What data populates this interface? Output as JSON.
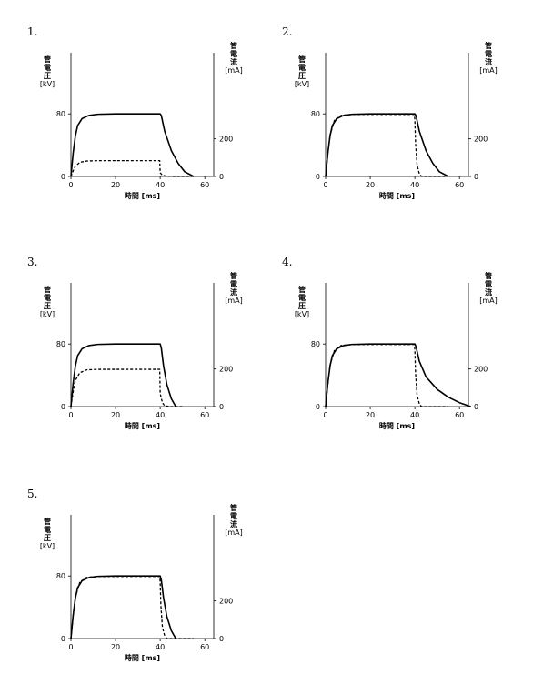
{
  "axes": {
    "left_label_lines": [
      "管",
      "電",
      "圧"
    ],
    "left_unit": "[kV]",
    "right_label_lines": [
      "管",
      "電",
      "流"
    ],
    "right_unit": "[mA]",
    "xlabel": "時間 [ms]",
    "x_ticks": [
      "0",
      "20",
      "40",
      "60"
    ],
    "y_left_ticks": [
      "0",
      "80"
    ],
    "y_right_ticks": [
      "0",
      "200"
    ]
  },
  "chart_data": [
    {
      "label": "1.",
      "type": "line",
      "xlim": [
        0,
        64
      ],
      "ylim_left_kV": [
        0,
        100
      ],
      "ylim_right_mA": [
        0,
        416
      ],
      "series": [
        {
          "axis": "left",
          "style": "solid",
          "x": [
            0,
            1,
            2,
            3,
            5,
            8,
            12,
            20,
            30,
            40,
            40.5,
            42,
            45,
            48,
            51,
            55
          ],
          "y": [
            0,
            30,
            52,
            65,
            74,
            78,
            79.5,
            80,
            80,
            80,
            78,
            58,
            33,
            17,
            6,
            0
          ]
        },
        {
          "axis": "right",
          "style": "dashed",
          "x": [
            0,
            1,
            2,
            4,
            7,
            12,
            25,
            38,
            39.8,
            40,
            41,
            43,
            46,
            50,
            55
          ],
          "y": [
            0,
            30,
            55,
            75,
            82,
            84,
            84,
            84,
            84,
            20,
            6,
            2,
            0,
            0,
            0
          ]
        }
      ]
    },
    {
      "label": "2.",
      "type": "line",
      "xlim": [
        0,
        64
      ],
      "ylim_left_kV": [
        0,
        100
      ],
      "ylim_right_mA": [
        0,
        416
      ],
      "series": [
        {
          "axis": "left",
          "style": "solid",
          "x": [
            0,
            1,
            2,
            3,
            5,
            8,
            12,
            20,
            30,
            40,
            40.5,
            42,
            45,
            48,
            51,
            55
          ],
          "y": [
            0,
            30,
            52,
            65,
            74,
            78,
            79.5,
            80,
            80,
            80,
            78,
            58,
            33,
            17,
            6,
            0
          ]
        },
        {
          "axis": "right",
          "style": "dashed",
          "x": [
            0,
            1,
            2,
            4,
            7,
            12,
            25,
            38,
            39.8,
            40,
            40.3,
            41,
            42,
            43,
            50,
            55
          ],
          "y": [
            0,
            120,
            220,
            300,
            325,
            330,
            330,
            330,
            330,
            300,
            180,
            60,
            15,
            0,
            0,
            0
          ]
        }
      ]
    },
    {
      "label": "3.",
      "type": "line",
      "xlim": [
        0,
        64
      ],
      "ylim_left_kV": [
        0,
        100
      ],
      "ylim_right_mA": [
        0,
        416
      ],
      "series": [
        {
          "axis": "left",
          "style": "solid",
          "x": [
            0,
            1,
            2,
            3,
            5,
            8,
            12,
            20,
            30,
            40,
            40.5,
            41.5,
            43,
            45,
            47
          ],
          "y": [
            0,
            30,
            52,
            65,
            74,
            78,
            79.5,
            80,
            80,
            80,
            75,
            52,
            28,
            10,
            0
          ]
        },
        {
          "axis": "right",
          "style": "dashed",
          "x": [
            0,
            1,
            2,
            4,
            7,
            12,
            25,
            38,
            39.8,
            40,
            41,
            42,
            44,
            47,
            50
          ],
          "y": [
            0,
            80,
            140,
            180,
            195,
            198,
            198,
            198,
            198,
            70,
            20,
            5,
            0,
            0,
            0
          ]
        }
      ]
    },
    {
      "label": "4.",
      "type": "line",
      "xlim": [
        0,
        64
      ],
      "ylim_left_kV": [
        0,
        100
      ],
      "ylim_right_mA": [
        0,
        416
      ],
      "series": [
        {
          "axis": "left",
          "style": "solid",
          "x": [
            0,
            1,
            2,
            3,
            5,
            8,
            12,
            20,
            30,
            40,
            40.5,
            42,
            45,
            50,
            55,
            60,
            65
          ],
          "y": [
            0,
            30,
            52,
            65,
            74,
            78,
            79.5,
            80,
            80,
            80,
            77,
            58,
            38,
            22,
            12,
            5,
            0
          ]
        },
        {
          "axis": "right",
          "style": "dashed",
          "x": [
            0,
            1,
            2,
            4,
            7,
            12,
            25,
            38,
            39.8,
            40,
            40.3,
            41,
            42,
            43,
            50,
            55
          ],
          "y": [
            0,
            120,
            220,
            300,
            325,
            330,
            330,
            330,
            330,
            300,
            180,
            60,
            15,
            0,
            0,
            0
          ]
        }
      ]
    },
    {
      "label": "5.",
      "type": "line",
      "xlim": [
        0,
        64
      ],
      "ylim_left_kV": [
        0,
        100
      ],
      "ylim_right_mA": [
        0,
        416
      ],
      "series": [
        {
          "axis": "left",
          "style": "solid",
          "x": [
            0,
            1,
            2,
            3,
            5,
            8,
            12,
            20,
            30,
            40,
            40.5,
            41.5,
            43,
            45,
            47
          ],
          "y": [
            0,
            30,
            52,
            65,
            74,
            78,
            79.5,
            80,
            80,
            80,
            75,
            52,
            28,
            10,
            0
          ]
        },
        {
          "axis": "right",
          "style": "dashed",
          "x": [
            0,
            1,
            2,
            4,
            7,
            12,
            25,
            38,
            39.8,
            40,
            40.3,
            41,
            42,
            43,
            50,
            55
          ],
          "y": [
            0,
            120,
            220,
            300,
            325,
            330,
            330,
            330,
            330,
            300,
            180,
            60,
            15,
            0,
            0,
            0
          ]
        }
      ]
    }
  ]
}
